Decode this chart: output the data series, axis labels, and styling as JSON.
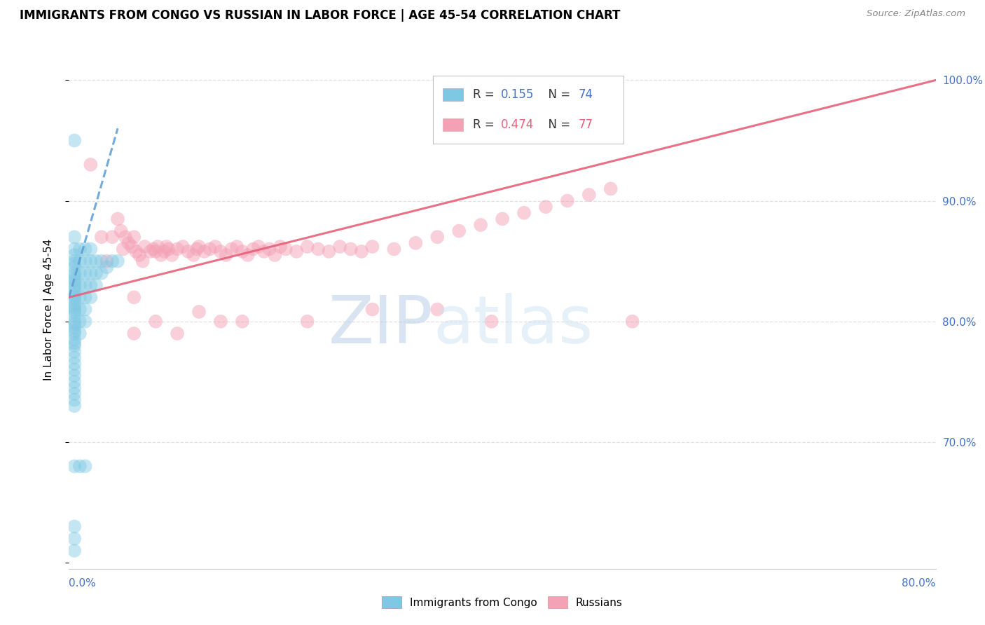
{
  "title": "IMMIGRANTS FROM CONGO VS RUSSIAN IN LABOR FORCE | AGE 45-54 CORRELATION CHART",
  "source": "Source: ZipAtlas.com",
  "ylabel": "In Labor Force | Age 45-54",
  "xmin": 0.0,
  "xmax": 0.8,
  "ymin": 0.595,
  "ymax": 1.025,
  "right_ytick_vals": [
    0.7,
    0.8,
    0.9,
    1.0
  ],
  "right_ytick_labels": [
    "70.0%",
    "80.0%",
    "90.0%",
    "100.0%"
  ],
  "legend_blue_text": "R = 0.155   N = 74",
  "legend_pink_text": "R = 0.474   N = 77",
  "legend_label_blue": "Immigrants from Congo",
  "legend_label_pink": "Russians",
  "watermark1": "ZIP",
  "watermark2": "atlas",
  "watermark_color1": "#b8d4e8",
  "watermark_color2": "#c8dff0",
  "blue_color": "#7ec8e3",
  "pink_color": "#f4a0b5",
  "blue_line_color": "#5b9bd5",
  "pink_line_color": "#e8607a",
  "grid_color": "#e0e0e0",
  "title_fontsize": 12.5,
  "source_fontsize": 10,
  "congo_x": [
    0.005,
    0.005,
    0.005,
    0.005,
    0.005,
    0.005,
    0.005,
    0.005,
    0.005,
    0.005,
    0.005,
    0.005,
    0.005,
    0.005,
    0.005,
    0.005,
    0.005,
    0.005,
    0.005,
    0.005,
    0.005,
    0.005,
    0.005,
    0.005,
    0.005,
    0.005,
    0.005,
    0.005,
    0.005,
    0.005,
    0.005,
    0.005,
    0.005,
    0.005,
    0.005,
    0.005,
    0.005,
    0.005,
    0.005,
    0.005,
    0.01,
    0.01,
    0.01,
    0.01,
    0.01,
    0.01,
    0.01,
    0.01,
    0.015,
    0.015,
    0.015,
    0.015,
    0.015,
    0.015,
    0.015,
    0.02,
    0.02,
    0.02,
    0.02,
    0.02,
    0.025,
    0.025,
    0.025,
    0.03,
    0.03,
    0.035,
    0.04,
    0.045,
    0.005,
    0.005,
    0.01,
    0.015,
    0.005,
    0.005
  ],
  "congo_y": [
    0.95,
    0.87,
    0.86,
    0.855,
    0.85,
    0.848,
    0.845,
    0.84,
    0.838,
    0.835,
    0.833,
    0.83,
    0.828,
    0.825,
    0.822,
    0.82,
    0.818,
    0.815,
    0.812,
    0.81,
    0.808,
    0.805,
    0.8,
    0.798,
    0.795,
    0.792,
    0.79,
    0.785,
    0.782,
    0.78,
    0.775,
    0.77,
    0.765,
    0.76,
    0.755,
    0.75,
    0.745,
    0.74,
    0.735,
    0.73,
    0.86,
    0.85,
    0.84,
    0.83,
    0.82,
    0.81,
    0.8,
    0.79,
    0.86,
    0.85,
    0.84,
    0.83,
    0.82,
    0.81,
    0.8,
    0.86,
    0.85,
    0.84,
    0.83,
    0.82,
    0.85,
    0.84,
    0.83,
    0.85,
    0.84,
    0.845,
    0.85,
    0.85,
    0.68,
    0.63,
    0.68,
    0.68,
    0.62,
    0.61
  ],
  "russian_x": [
    0.02,
    0.03,
    0.035,
    0.04,
    0.045,
    0.048,
    0.05,
    0.052,
    0.055,
    0.058,
    0.06,
    0.062,
    0.065,
    0.068,
    0.07,
    0.075,
    0.078,
    0.08,
    0.082,
    0.085,
    0.088,
    0.09,
    0.092,
    0.095,
    0.1,
    0.105,
    0.11,
    0.115,
    0.118,
    0.12,
    0.125,
    0.13,
    0.135,
    0.14,
    0.145,
    0.15,
    0.155,
    0.16,
    0.165,
    0.17,
    0.175,
    0.18,
    0.185,
    0.19,
    0.195,
    0.2,
    0.21,
    0.22,
    0.23,
    0.24,
    0.25,
    0.26,
    0.27,
    0.28,
    0.3,
    0.32,
    0.34,
    0.36,
    0.38,
    0.4,
    0.42,
    0.44,
    0.46,
    0.48,
    0.5,
    0.06,
    0.06,
    0.08,
    0.1,
    0.12,
    0.14,
    0.16,
    0.22,
    0.28,
    0.34,
    0.39,
    0.52
  ],
  "russian_y": [
    0.93,
    0.87,
    0.85,
    0.87,
    0.885,
    0.875,
    0.86,
    0.87,
    0.865,
    0.862,
    0.87,
    0.858,
    0.855,
    0.85,
    0.862,
    0.858,
    0.86,
    0.858,
    0.862,
    0.855,
    0.858,
    0.862,
    0.86,
    0.855,
    0.86,
    0.862,
    0.858,
    0.855,
    0.86,
    0.862,
    0.858,
    0.86,
    0.862,
    0.858,
    0.855,
    0.86,
    0.862,
    0.858,
    0.855,
    0.86,
    0.862,
    0.858,
    0.86,
    0.855,
    0.862,
    0.86,
    0.858,
    0.862,
    0.86,
    0.858,
    0.862,
    0.86,
    0.858,
    0.862,
    0.86,
    0.865,
    0.87,
    0.875,
    0.88,
    0.885,
    0.89,
    0.895,
    0.9,
    0.905,
    0.91,
    0.82,
    0.79,
    0.8,
    0.79,
    0.808,
    0.8,
    0.8,
    0.8,
    0.81,
    0.81,
    0.8,
    0.8
  ],
  "congo_trend_x": [
    0.0,
    0.045
  ],
  "congo_trend_y": [
    0.82,
    0.96
  ],
  "russian_trend_x": [
    0.0,
    0.8
  ],
  "russian_trend_y": [
    0.82,
    1.0
  ]
}
